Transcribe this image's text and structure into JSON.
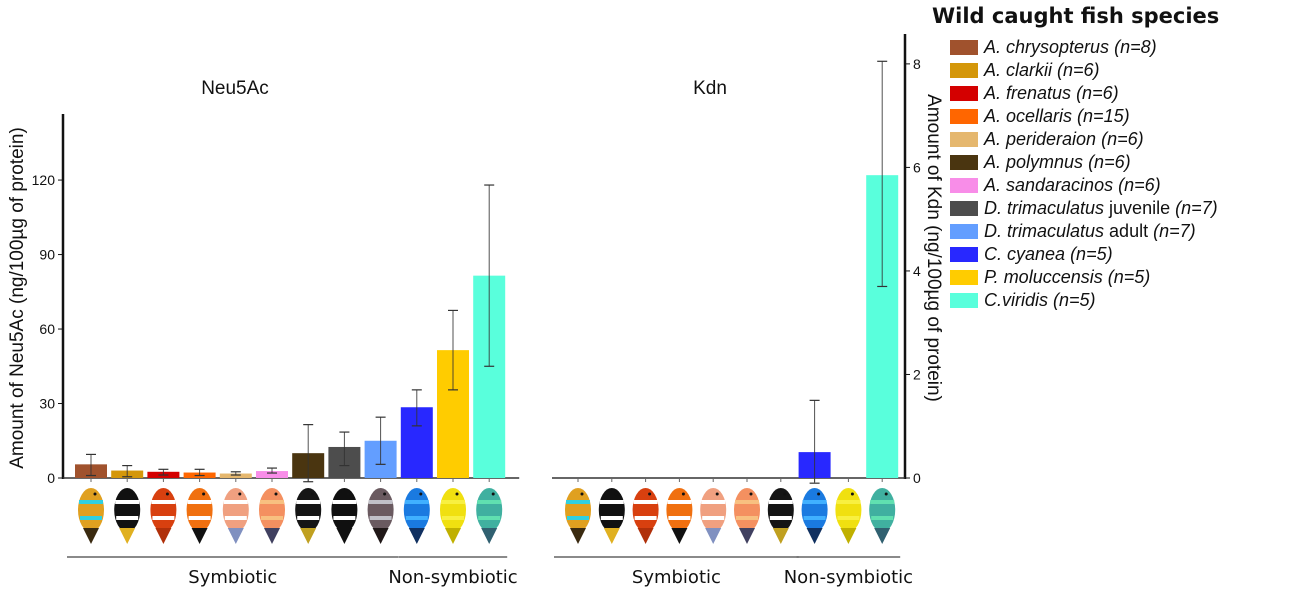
{
  "legend": {
    "title": "Wild caught fish species",
    "items": [
      {
        "key": "chrysopterus",
        "name": "A. chrysopterus",
        "suffix": "",
        "n": "(n=8)",
        "color": "#A0522D"
      },
      {
        "key": "clarkii",
        "name": "A. clarkii",
        "suffix": "",
        "n": "(n=6)",
        "color": "#D4970A"
      },
      {
        "key": "frenatus",
        "name": "A. frenatus",
        "suffix": "",
        "n": "(n=6)",
        "color": "#D40000"
      },
      {
        "key": "ocellaris",
        "name": "A. ocellaris",
        "suffix": "",
        "n": "(n=15)",
        "color": "#FF6600"
      },
      {
        "key": "perideraion",
        "name": "A. perideraion",
        "suffix": "",
        "n": "(n=6)",
        "color": "#E5B76E"
      },
      {
        "key": "polymnus",
        "name": "A. polymnus",
        "suffix": "",
        "n": "(n=6)",
        "color": "#4A3510"
      },
      {
        "key": "sandaracinos",
        "name": "A. sandaracinos",
        "suffix": "",
        "n": "(n=6)",
        "color": "#F88DE8"
      },
      {
        "key": "trimac_juv",
        "name": "D. trimaculatus",
        "suffix": " juvenile ",
        "n": "(n=7)",
        "color": "#4D4D4D"
      },
      {
        "key": "trimac_adult",
        "name": "D. trimaculatus",
        "suffix": " adult ",
        "n": "(n=7)",
        "color": "#639EFF"
      },
      {
        "key": "cyanea",
        "name": "C. cyanea",
        "suffix": "",
        "n": "(n=5)",
        "color": "#2828FF"
      },
      {
        "key": "moluccensis",
        "name": "P. moluccensis",
        "suffix": "",
        "n": "(n=5)",
        "color": "#FFCC00"
      },
      {
        "key": "viridis",
        "name": "C.viridis",
        "suffix": "",
        "n": "(n=5)",
        "color": "#59FFDC"
      }
    ]
  },
  "chart_data": [
    {
      "type": "bar",
      "title": "Neu5Ac",
      "ylabel": "Amount of Neu5Ac (ng/100µg of protein)",
      "xlabel": "",
      "ylim": [
        0,
        145
      ],
      "yticks": [
        0,
        30,
        60,
        90,
        120
      ],
      "axis_side": "left",
      "grid": false,
      "legend_position": "right",
      "categories": [
        "A. chrysopterus",
        "A. clarkii",
        "A. frenatus",
        "A. ocellaris",
        "A. perideraion",
        "A. sandaracinos",
        "A. polymnus",
        "D. trimaculatus juvenile",
        "D. trimaculatus adult",
        "C. cyanea",
        "P. moluccensis",
        "C.viridis"
      ],
      "color_keys": [
        "chrysopterus",
        "clarkii",
        "frenatus",
        "ocellaris",
        "perideraion",
        "sandaracinos",
        "polymnus",
        "trimac_juv",
        "trimac_adult",
        "cyanea",
        "moluccensis",
        "viridis"
      ],
      "values": [
        5.5,
        3.0,
        2.5,
        2.2,
        1.8,
        2.8,
        10.0,
        12.5,
        15.0,
        28.5,
        51.5,
        81.5
      ],
      "error_low": [
        1.0,
        0.5,
        1.2,
        1.0,
        1.2,
        2.0,
        -1.5,
        5.0,
        5.5,
        21.0,
        35.5,
        45.0
      ],
      "error_high": [
        9.5,
        5.0,
        3.5,
        3.5,
        2.5,
        4.0,
        21.5,
        18.5,
        24.5,
        35.5,
        67.5,
        118.0
      ],
      "groups": [
        {
          "label": "Symbiotic",
          "from": 0,
          "to": 8
        },
        {
          "label": "Non-symbiotic",
          "from": 9,
          "to": 11
        }
      ]
    },
    {
      "type": "bar",
      "title": "Kdn",
      "ylabel": "Amount of Kdn (ng/100µg of protein)",
      "xlabel": "",
      "ylim": [
        0,
        8.5
      ],
      "yticks": [
        0,
        2,
        4,
        6,
        8
      ],
      "axis_side": "right",
      "grid": false,
      "categories": [
        "A. chrysopterus",
        "A. clarkii",
        "A. frenatus",
        "A. ocellaris",
        "A. perideraion",
        "A. sandaracinos",
        "A. polymnus",
        "C. cyanea",
        "P. moluccensis",
        "C.viridis"
      ],
      "color_keys": [
        "chrysopterus",
        "clarkii",
        "frenatus",
        "ocellaris",
        "perideraion",
        "sandaracinos",
        "polymnus",
        "cyanea",
        "moluccensis",
        "viridis"
      ],
      "values": [
        0,
        0,
        0,
        0,
        0,
        0,
        0,
        0.5,
        0,
        5.85
      ],
      "error_low": [
        null,
        null,
        null,
        null,
        null,
        null,
        null,
        -0.1,
        null,
        3.7
      ],
      "error_high": [
        null,
        null,
        null,
        null,
        null,
        null,
        null,
        1.5,
        null,
        8.05
      ],
      "groups": [
        {
          "label": "Symbiotic",
          "from": 0,
          "to": 6
        },
        {
          "label": "Non-symbiotic",
          "from": 7,
          "to": 9
        }
      ]
    }
  ]
}
